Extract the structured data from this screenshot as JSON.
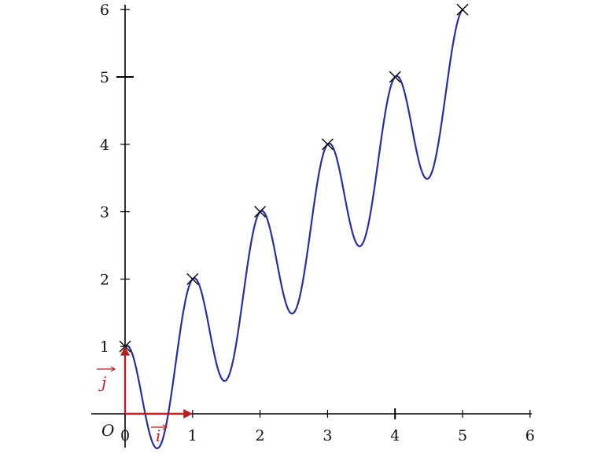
{
  "chart_data": {
    "type": "line",
    "title": "",
    "xlabel": "",
    "ylabel": "",
    "xlim": [
      0,
      6
    ],
    "ylim": [
      0,
      6
    ],
    "x_ticks": [
      "0",
      "1",
      "2",
      "3",
      "4",
      "5",
      "6"
    ],
    "y_ticks": [
      "1",
      "2",
      "3",
      "4",
      "5",
      "6"
    ],
    "origin_label": "O",
    "grid": false,
    "legend": "none",
    "series": [
      {
        "function": "y = x + cos(2πx)",
        "x_range": [
          0,
          5
        ],
        "color": "#2b2f8f"
      }
    ],
    "markers": {
      "symbol": "cross",
      "x": [
        0,
        1,
        2,
        3,
        4,
        5
      ],
      "y": [
        1,
        2,
        3,
        4,
        5,
        6
      ]
    },
    "unit_vectors": [
      {
        "name": "i",
        "label": "i",
        "from": [
          0,
          0
        ],
        "to": [
          1,
          0
        ],
        "color": "#b22222"
      },
      {
        "name": "j",
        "label": "j",
        "from": [
          0,
          0
        ],
        "to": [
          0,
          1
        ],
        "color": "#b22222"
      }
    ]
  }
}
